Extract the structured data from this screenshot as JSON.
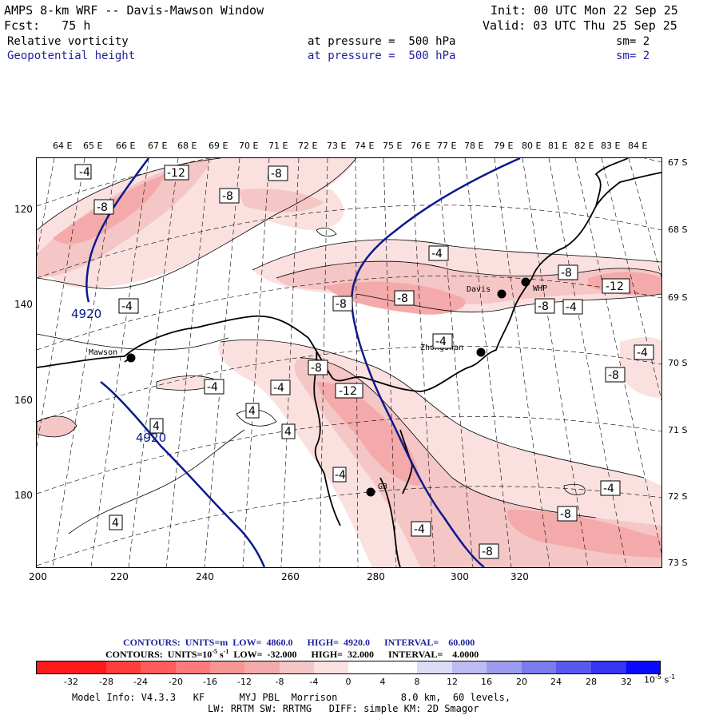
{
  "header": {
    "title": "AMPS 8-km WRF -- Davis-Mawson Window",
    "init": "Init: 00 UTC Mon 22 Sep 25",
    "fcst": "Fcst:   75 h",
    "valid": "Valid: 03 UTC Thu 25 Sep 25",
    "field1": {
      "name": "Relative vorticity",
      "level": "at pressure =  500 hPa",
      "sm": "sm= 2"
    },
    "field2": {
      "name": "Geopotential height",
      "level": "at pressure =  500 hPa",
      "sm": "sm= 2"
    }
  },
  "axes": {
    "lon_labels": [
      "64 E",
      "65 E",
      "66 E",
      "67 E",
      "68 E",
      "69 E",
      "70 E",
      "71 E",
      "72 E",
      "73 E",
      "74 E",
      "75 E",
      "76 E",
      "77 E",
      "78 E",
      "79 E",
      "80 E",
      "81 E",
      "82 E",
      "83 E",
      "84 E"
    ],
    "lat_labels": [
      "67 S",
      "68 S",
      "69 S",
      "70 S",
      "71 S",
      "72 S",
      "73 S"
    ],
    "x_ticks": [
      "200",
      "220",
      "240",
      "260",
      "280",
      "300",
      "320"
    ],
    "y_ticks": [
      "120",
      "140",
      "160",
      "180"
    ]
  },
  "map": {
    "stations": [
      {
        "name": "Mawson"
      },
      {
        "name": "Davis"
      },
      {
        "name": "WHP"
      },
      {
        "name": "Zhongshan"
      },
      {
        "name": "G3"
      }
    ],
    "height_labels": [
      "4920",
      "4920"
    ],
    "vort_labels": [
      "-4",
      "-12",
      "-8",
      "-8",
      "-8",
      "-4",
      "-8",
      "-4",
      "-8",
      "-8",
      "-12",
      "-8",
      "-4",
      "-4",
      "-4",
      "-8",
      "-4",
      "-8",
      "-4",
      "-12",
      "-4",
      "4",
      "4",
      "4",
      "-4",
      "-4",
      "-8",
      "-8",
      "4"
    ]
  },
  "legend": {
    "contours1": "CONTOURS:  UNITS=m  LOW=  4860.0      HIGH=  4920.0      INTERVAL=    60.000",
    "contours2_pre": "CONTOURS:  UNITS=10",
    "contours2_exp": "-5",
    "contours2_post": " s",
    "contours2_exp2": "-1",
    "contours2_rest": "  LOW=  -32.000      HIGH=  32.000      INTERVAL=    4.0000",
    "colorbar_values": [
      "-32",
      "-28",
      "-24",
      "-20",
      "-16",
      "-12",
      "-8",
      "-4",
      "0",
      "4",
      "8",
      "12",
      "16",
      "20",
      "24",
      "28",
      "32"
    ],
    "colorbar_colors": [
      "#ff1a1a",
      "#ff3d3d",
      "#ff5c5c",
      "#ff7a7a",
      "#f79494",
      "#f4aaaa",
      "#f5c6c6",
      "#fbe0e0",
      "#ffffff",
      "#ffffff",
      "#dcdcf7",
      "#bcbcf2",
      "#9c9cef",
      "#7b7bee",
      "#5959ef",
      "#3535f2",
      "#0a0aff"
    ],
    "units_base": "10",
    "units_exp": "-5",
    "units_s": " s",
    "units_exp2": "-1"
  },
  "model_info": {
    "line1": "Model Info: V4.3.3   KF      MYJ PBL  Morrison           8.0 km,  60 levels,",
    "line2": "LW: RRTM SW: RRTMG   DIFF: simple KM: 2D Smagor"
  }
}
